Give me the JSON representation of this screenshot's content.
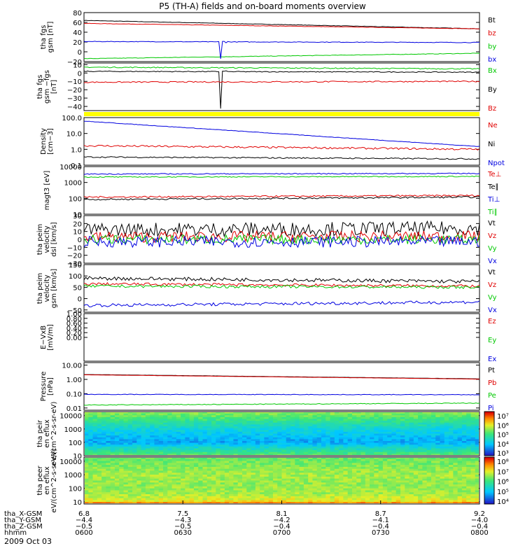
{
  "title": "P5 (TH-A) fields and on-board moments overview",
  "date_label": "2009 Oct 03",
  "colors": {
    "black": "#000000",
    "red": "#e00000",
    "green": "#00c800",
    "blue": "#0000e0",
    "yellow": "#ffff00"
  },
  "chart_data": [
    {
      "type": "line",
      "ylabel": "tha fgs gsm [nT]",
      "ylim": [
        -20,
        80
      ],
      "ticks": [
        "80",
        "60",
        "40",
        "20",
        "0",
        "−20"
      ],
      "series": [
        {
          "name": "Bt",
          "color": "black",
          "start": 64,
          "end": 47,
          "noise": 0.4
        },
        {
          "name": "bz",
          "color": "red",
          "start": 58,
          "end": 47,
          "noise": 0.4
        },
        {
          "name": "by",
          "color": "green",
          "start": -14,
          "end": -3,
          "noise": 0.5
        },
        {
          "name": "bx",
          "color": "blue",
          "start": 21,
          "end": 19,
          "noise": 0.6,
          "spike": {
            "at": 0.345,
            "to": -14,
            "recover": 4
          }
        }
      ]
    },
    {
      "type": "line",
      "ylabel": "tha fgs gsm −fgs [nT]",
      "ylim": [
        -45,
        12
      ],
      "ticks": [
        "10",
        "0",
        "−10",
        "−20",
        "−30",
        "−40"
      ],
      "series": [
        {
          "name": "Bx",
          "color": "green",
          "start": 7,
          "end": 5,
          "noise": 0.6
        },
        {
          "name": "By",
          "color": "black",
          "start": 2,
          "end": 1,
          "noise": 0.5,
          "spike": {
            "at": 0.345,
            "to": -42,
            "recover": 2
          }
        },
        {
          "name": "Bz",
          "color": "red",
          "start": -11,
          "end": -10,
          "noise": 0.7
        }
      ]
    },
    {
      "type": "bar-strip",
      "color": "yellow"
    },
    {
      "type": "line",
      "log": true,
      "ylabel": "Density [cm−3]",
      "ylim": [
        0.1,
        100
      ],
      "ticks": [
        "100.0",
        "10.0",
        "1.0",
        "0.1"
      ],
      "series": [
        {
          "name": "Ne",
          "color": "red",
          "start": 1.7,
          "end": 1.0,
          "noise": 0.12
        },
        {
          "name": "Ni",
          "color": "black",
          "start": 0.33,
          "end": 0.25,
          "noise": 0.08
        },
        {
          "name": "Npot",
          "color": "blue",
          "start": 60,
          "end": 1.5,
          "noise": 0.03
        }
      ]
    },
    {
      "type": "line",
      "log": true,
      "ylabel": "magt3 [eV]",
      "ylim": [
        10,
        10000
      ],
      "ticks": [
        "10000",
        "1000",
        "100",
        "10"
      ],
      "series": [
        {
          "name": "Te⊥",
          "color": "red",
          "start": 120,
          "end": 150,
          "noise": 0.1
        },
        {
          "name": "Te∥",
          "color": "black",
          "start": 85,
          "end": 120,
          "noise": 0.1
        },
        {
          "name": "Ti⊥",
          "color": "blue",
          "start": 3400,
          "end": 3700,
          "noise": 0.06
        },
        {
          "name": "Ti∥",
          "color": "green",
          "start": 2200,
          "end": 2400,
          "noise": 0.06
        }
      ]
    },
    {
      "type": "line",
      "ylabel": "tha peim velocity dsl [km/s]",
      "ylim": [
        -30,
        30
      ],
      "ticks": [
        "30",
        "20",
        "10",
        "0",
        "−10",
        "−20",
        "−30"
      ],
      "series": [
        {
          "name": "Vt",
          "color": "black",
          "start": 12,
          "end": 14,
          "noise": 9
        },
        {
          "name": "Vz",
          "color": "red",
          "start": 3,
          "end": 4,
          "noise": 7
        },
        {
          "name": "Vy",
          "color": "green",
          "start": 0,
          "end": 0,
          "noise": 6
        },
        {
          "name": "Vx",
          "color": "blue",
          "start": -3,
          "end": -3,
          "noise": 7
        }
      ]
    },
    {
      "type": "line",
      "ylabel": "tha peim velocity gsm [km/s]",
      "ylim": [
        -60,
        150
      ],
      "ticks": [
        "150",
        "100",
        "50",
        "0",
        "−50"
      ],
      "series": [
        {
          "name": "Vt",
          "color": "black",
          "start": 90,
          "end": 75,
          "noise": 8
        },
        {
          "name": "Vz",
          "color": "red",
          "start": 65,
          "end": 55,
          "noise": 6
        },
        {
          "name": "Vy",
          "color": "green",
          "start": 55,
          "end": 50,
          "noise": 6
        },
        {
          "name": "Vx",
          "color": "blue",
          "start": -30,
          "end": -15,
          "noise": 7
        }
      ]
    },
    {
      "type": "line",
      "ylabel": "E−VxB [mV/m]",
      "ylim": [
        -1,
        1
      ],
      "ticks": [
        "1.00",
        "0.80",
        "0.60",
        "0.40",
        "0.20",
        "0.00"
      ],
      "series": [
        {
          "name": "Ez",
          "color": "red",
          "empty": true
        },
        {
          "name": "Ey",
          "color": "green",
          "empty": true
        },
        {
          "name": "Ex",
          "color": "blue",
          "empty": true
        }
      ]
    },
    {
      "type": "line",
      "log": true,
      "ylabel": "Pressure [nPa]",
      "ylim": [
        0.007,
        15
      ],
      "ticks": [
        "10.00",
        "1.00",
        "0.10",
        "0.01"
      ],
      "series": [
        {
          "name": "Pt",
          "color": "black",
          "start": 2.2,
          "end": 1.1,
          "noise": 0.01
        },
        {
          "name": "Pb",
          "color": "red",
          "start": 2.1,
          "end": 1.05,
          "noise": 0.01
        },
        {
          "name": "Pe",
          "color": "green",
          "start": 0.016,
          "end": 0.022,
          "noise": 0.05
        },
        {
          "name": "Pi",
          "color": "blue",
          "start": 0.09,
          "end": 0.085,
          "noise": 0.04
        }
      ]
    },
    {
      "type": "heatmap",
      "ylabel": "tha peir en eflux eV/(cm^2-s-sr-eV)",
      "log": true,
      "ylim": [
        10,
        20000
      ],
      "ticks": [
        "10000",
        "1000",
        "100",
        "10"
      ],
      "colorbar": {
        "labels": [
          "10⁷",
          "10⁶",
          "10⁵",
          "10⁴",
          "10³"
        ]
      },
      "profile": [
        [
          10,
          0.55
        ],
        [
          100,
          0.2
        ],
        [
          1000,
          0.32
        ],
        [
          10000,
          0.55
        ],
        [
          20000,
          0.6
        ]
      ]
    },
    {
      "type": "heatmap",
      "ylabel": "tha peer en eflux eV/(cm^2-s-sr-eV)",
      "log": true,
      "ylim": [
        7,
        20000
      ],
      "ticks": [
        "10000",
        "1000",
        "100",
        "10"
      ],
      "colorbar": {
        "labels": [
          "10⁸",
          "10⁷",
          "10⁶",
          "10⁵",
          "10⁴"
        ]
      },
      "profile": [
        [
          7,
          0.92
        ],
        [
          12,
          0.7
        ],
        [
          40,
          0.62
        ],
        [
          200,
          0.6
        ],
        [
          1000,
          0.62
        ],
        [
          5000,
          0.58
        ],
        [
          20000,
          0.55
        ]
      ]
    }
  ],
  "x_axis": {
    "rows": [
      {
        "label": "tha_X-GSM",
        "values": [
          "6.8",
          "7.5",
          "8.1",
          "8.7",
          "9.2"
        ]
      },
      {
        "label": "tha_Y-GSM",
        "values": [
          "−4.4",
          "−4.3",
          "−4.2",
          "−4.1",
          "−4.0"
        ]
      },
      {
        "label": "tha_Z-GSM",
        "values": [
          "−0.5",
          "−0.5",
          "−0.4",
          "−0.4",
          "−0.4"
        ]
      },
      {
        "label": "hhmm",
        "values": [
          "0600",
          "0630",
          "0700",
          "0730",
          "0800"
        ]
      }
    ]
  }
}
